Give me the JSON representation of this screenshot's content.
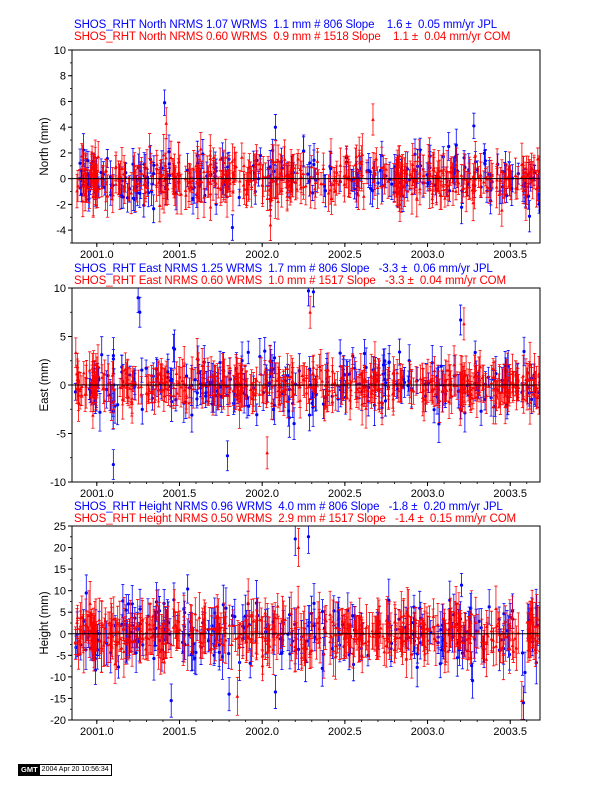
{
  "chart_data": [
    {
      "type": "scatter",
      "title_lines": [
        {
          "text": "SHOS_RHT North NRMS 1.07 WRMS  1.1 mm # 806 Slope    1.6 ±  0.05 mm/yr JPL",
          "color": "#0000ff"
        },
        {
          "text": "SHOS_RHT North NRMS 0.60 WRMS  0.9 mm # 1518 Slope    1.1 ±  0.04 mm/yr COM",
          "color": "#ff0000"
        }
      ],
      "ylabel": "North (mm)",
      "xlim": [
        2000.85,
        2003.68
      ],
      "ylim": [
        -5,
        10
      ],
      "yticks": [
        -4,
        -2,
        0,
        2,
        4,
        6,
        8,
        10
      ],
      "xticks": [
        2001.0,
        2001.5,
        2002.0,
        2002.5,
        2003.0,
        2003.5
      ],
      "xtick_labels": [
        "2001.0",
        "2001.5",
        "2002.0",
        "2002.5",
        "2003.0",
        "2003.5"
      ],
      "series": [
        {
          "name": "JPL",
          "color": "#0000ff",
          "count": 806,
          "scatter_sd": 1.2,
          "sigma": 0.9,
          "outliers": [
            [
              2001.41,
              5.9
            ],
            [
              2002.08,
              4.0
            ],
            [
              2003.28,
              4.1
            ],
            [
              2001.82,
              -3.8
            ]
          ]
        },
        {
          "name": "COM",
          "color": "#ff0000",
          "count": 1518,
          "scatter_sd": 1.0,
          "sigma": 1.1,
          "outliers": [
            [
              2001.42,
              4.3
            ],
            [
              2002.67,
              4.6
            ],
            [
              2002.05,
              -3.6
            ]
          ]
        }
      ],
      "zero_line": 0
    },
    {
      "type": "scatter",
      "title_lines": [
        {
          "text": "SHOS_RHT East NRMS 1.25 WRMS  1.7 mm # 806 Slope   -3.3 ±  0.06 mm/yr JPL",
          "color": "#0000ff"
        },
        {
          "text": "SHOS_RHT East NRMS 0.60 WRMS  1.0 mm # 1517 Slope   -3.3 ±  0.04 mm/yr COM",
          "color": "#ff0000"
        }
      ],
      "ylabel": "East (mm)",
      "xlim": [
        2000.85,
        2003.68
      ],
      "ylim": [
        -10,
        10
      ],
      "yticks": [
        -10,
        -5,
        0,
        5,
        10
      ],
      "xticks": [
        2001.0,
        2001.5,
        2002.0,
        2002.5,
        2003.0,
        2003.5
      ],
      "xtick_labels": [
        "2001.0",
        "2001.5",
        "2002.0",
        "2002.5",
        "2003.0",
        "2003.5"
      ],
      "series": [
        {
          "name": "JPL",
          "color": "#0000ff",
          "count": 806,
          "scatter_sd": 1.9,
          "sigma": 1.4,
          "outliers": [
            [
              2001.25,
              9.0
            ],
            [
              2001.26,
              7.5
            ],
            [
              2002.28,
              9.7
            ],
            [
              2002.31,
              9.6
            ],
            [
              2003.2,
              6.7
            ],
            [
              2001.1,
              -8.2
            ],
            [
              2001.79,
              -7.3
            ]
          ]
        },
        {
          "name": "COM",
          "color": "#ff0000",
          "count": 1517,
          "scatter_sd": 1.2,
          "sigma": 1.5,
          "outliers": [
            [
              2002.29,
              7.5
            ],
            [
              2003.22,
              6.3
            ],
            [
              2002.03,
              -7.0
            ]
          ]
        }
      ],
      "zero_line": 0
    },
    {
      "type": "scatter",
      "title_lines": [
        {
          "text": "SHOS_RHT Height NRMS 0.96 WRMS  4.0 mm # 806 Slope   -1.8 ±  0.20 mm/yr JPL",
          "color": "#0000ff"
        },
        {
          "text": "SHOS_RHT Height NRMS 0.50 WRMS  2.9 mm # 1517 Slope   -1.4 ±  0.15 mm/yr COM",
          "color": "#ff0000"
        }
      ],
      "ylabel": "Height (mm)",
      "xlim": [
        2000.85,
        2003.68
      ],
      "ylim": [
        -20,
        25
      ],
      "yticks": [
        -20,
        -15,
        -10,
        -5,
        0,
        5,
        10,
        15,
        20,
        25
      ],
      "xticks": [
        2001.0,
        2001.5,
        2002.0,
        2002.5,
        2003.0,
        2003.5
      ],
      "xtick_labels": [
        "2001.0",
        "2001.5",
        "2002.0",
        "2002.5",
        "2003.0",
        "2003.5"
      ],
      "series": [
        {
          "name": "JPL",
          "color": "#0000ff",
          "count": 806,
          "scatter_sd": 4.5,
          "sigma": 3.5,
          "outliers": [
            [
              2002.2,
              22.0
            ],
            [
              2002.28,
              22.5
            ],
            [
              2003.58,
              -16.0
            ],
            [
              2001.45,
              -15.5
            ],
            [
              2002.08,
              -13.5
            ],
            [
              2001.8,
              -14.0
            ]
          ]
        },
        {
          "name": "COM",
          "color": "#ff0000",
          "count": 1517,
          "scatter_sd": 3.0,
          "sigma": 4.0,
          "outliers": [
            [
              2002.22,
              20.0
            ],
            [
              2001.85,
              -14.5
            ],
            [
              2003.57,
              -15.5
            ]
          ]
        }
      ],
      "zero_line": 0
    }
  ],
  "footer": {
    "logo": "GMT",
    "timestamp": "2004 Apr 20 10:56:34"
  }
}
